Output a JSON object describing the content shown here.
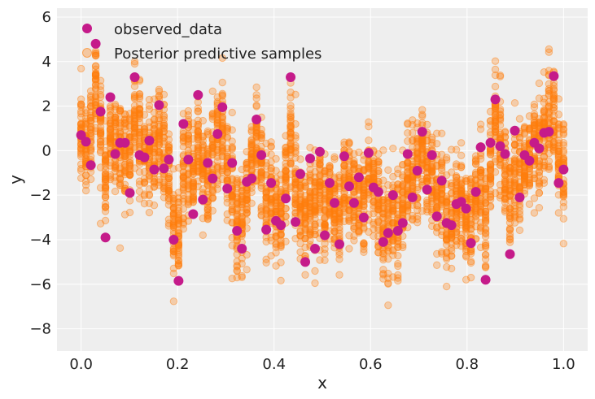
{
  "chart_data": {
    "type": "scatter",
    "title": "",
    "xlabel": "x",
    "ylabel": "y",
    "xlim": [
      -0.05,
      1.05
    ],
    "ylim": [
      -9,
      6.4
    ],
    "xticks": [
      0.0,
      0.2,
      0.4,
      0.6,
      0.8,
      1.0
    ],
    "xtick_labels": [
      "0.0",
      "0.2",
      "0.4",
      "0.6",
      "0.8",
      "1.0"
    ],
    "yticks": [
      -8,
      -6,
      -4,
      -2,
      0,
      2,
      4,
      6
    ],
    "ytick_labels": [
      "−8",
      "−6",
      "−4",
      "−2",
      "0",
      "2",
      "4",
      "6"
    ],
    "grid": true,
    "legend_position": "top-left",
    "series": [
      {
        "name": "observed_data",
        "color": "#c51b8a",
        "marker": "filled-circle",
        "x": [
          0.0,
          0.0101,
          0.0202,
          0.0303,
          0.0404,
          0.0505,
          0.0606,
          0.0707,
          0.0808,
          0.0909,
          0.101,
          0.1111,
          0.1212,
          0.1313,
          0.1414,
          0.1515,
          0.1616,
          0.1717,
          0.1818,
          0.1919,
          0.202,
          0.2121,
          0.2222,
          0.2323,
          0.2424,
          0.2525,
          0.2626,
          0.2727,
          0.2828,
          0.2929,
          0.303,
          0.3131,
          0.3232,
          0.3333,
          0.3434,
          0.3535,
          0.3636,
          0.3737,
          0.3838,
          0.3939,
          0.404,
          0.4141,
          0.4242,
          0.4343,
          0.4444,
          0.4545,
          0.4646,
          0.4747,
          0.4848,
          0.4949,
          0.5051,
          0.5152,
          0.5253,
          0.5354,
          0.5455,
          0.5556,
          0.5657,
          0.5758,
          0.5859,
          0.596,
          0.6061,
          0.6162,
          0.6263,
          0.6364,
          0.6465,
          0.6566,
          0.6667,
          0.6768,
          0.6869,
          0.697,
          0.7071,
          0.7172,
          0.7273,
          0.7374,
          0.7475,
          0.7576,
          0.7677,
          0.7778,
          0.7879,
          0.798,
          0.8081,
          0.8182,
          0.8283,
          0.8384,
          0.8485,
          0.8586,
          0.8687,
          0.8788,
          0.8889,
          0.899,
          0.9091,
          0.9192,
          0.9293,
          0.9394,
          0.9495,
          0.9596,
          0.9697,
          0.9798,
          0.9899,
          1.0
        ],
        "y": [
          0.7,
          0.4,
          -0.65,
          4.8,
          1.75,
          -3.9,
          2.4,
          -0.15,
          0.35,
          0.35,
          -1.9,
          3.3,
          -0.2,
          -0.3,
          0.45,
          -0.85,
          2.05,
          -0.8,
          -0.4,
          -4.0,
          -5.85,
          1.2,
          -0.4,
          -2.85,
          2.5,
          -2.2,
          -0.55,
          -1.25,
          0.75,
          1.95,
          -1.7,
          -0.55,
          -3.6,
          -4.4,
          -1.4,
          -1.25,
          1.4,
          -0.2,
          -3.55,
          -1.45,
          -3.15,
          -3.35,
          -2.15,
          3.3,
          -3.2,
          -1.05,
          -5.0,
          -0.35,
          -4.4,
          -0.05,
          -3.8,
          -1.45,
          -2.35,
          -4.2,
          -0.25,
          -1.6,
          -2.35,
          -1.2,
          -3.0,
          -0.1,
          -1.65,
          -1.85,
          -4.1,
          -3.7,
          -2.0,
          -3.6,
          -3.25,
          -0.15,
          -2.1,
          -0.9,
          0.85,
          -1.75,
          -0.2,
          -2.95,
          -1.35,
          -3.25,
          -3.35,
          -2.4,
          -2.3,
          -2.6,
          -4.15,
          -1.85,
          0.15,
          -5.8,
          0.35,
          2.3,
          0.2,
          -0.15,
          -4.65,
          0.9,
          -2.1,
          -0.2,
          -0.45,
          0.35,
          0.1,
          0.8,
          0.85,
          3.35,
          -1.45,
          -0.85
        ]
      },
      {
        "name": "Posterior predictive samples",
        "color": "#ff7f0e",
        "marker": "translucent-circle",
        "samples_per_x": 40,
        "noise_sd": 1.1
      }
    ]
  }
}
